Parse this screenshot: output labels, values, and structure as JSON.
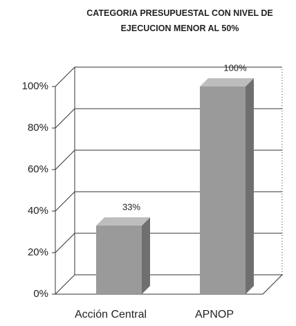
{
  "chart_data": {
    "type": "bar3d",
    "title": "CATEGORIA PRESUPUESTAL CON NIVEL DE EJECUCION MENOR AL 50%",
    "categories": [
      "Acción Central",
      "APNOP"
    ],
    "values": [
      33,
      100
    ],
    "value_labels": [
      "33%",
      "100%"
    ],
    "color": "#9a9a9a",
    "ylim": [
      0,
      100
    ],
    "yticks": [
      {
        "value": 0,
        "label": "0%"
      },
      {
        "value": 20,
        "label": "20%"
      },
      {
        "value": 40,
        "label": "40%"
      },
      {
        "value": 60,
        "label": "60%"
      },
      {
        "value": 80,
        "label": "80%"
      },
      {
        "value": 100,
        "label": "100%"
      }
    ],
    "grid": true
  }
}
